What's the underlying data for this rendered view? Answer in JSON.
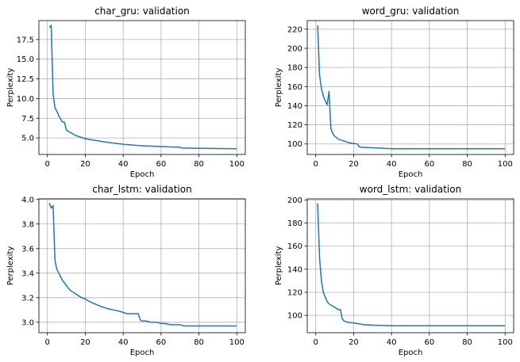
{
  "chart_data": [
    {
      "type": "line",
      "title": "char_gru: validation",
      "xlabel": "Epoch",
      "ylabel": "Perplexity",
      "xlim": [
        -4.5,
        104.5
      ],
      "ylim": [
        2.9,
        19.9
      ],
      "xticks": [
        0,
        20,
        40,
        60,
        80,
        100
      ],
      "yticks": [
        5.0,
        7.5,
        10.0,
        12.5,
        15.0,
        17.5
      ],
      "ytick_labels": [
        "5.0",
        "7.5",
        "10.0",
        "12.5",
        "15.0",
        "17.5"
      ],
      "grid": true,
      "line_color": "#1f77b4",
      "series": [
        {
          "x": [
            1,
            2,
            3,
            4,
            5,
            6,
            7,
            8,
            9,
            10,
            12,
            15,
            20,
            25,
            30,
            35,
            40,
            45,
            50,
            55,
            60,
            65,
            70,
            71,
            75,
            80,
            85,
            90,
            95,
            100
          ],
          "y": [
            19.0,
            19.3,
            10.6,
            8.8,
            8.4,
            7.8,
            7.4,
            7.0,
            7.0,
            6.0,
            5.7,
            5.3,
            4.9,
            4.7,
            4.5,
            4.35,
            4.2,
            4.1,
            4.0,
            3.95,
            3.9,
            3.85,
            3.82,
            3.72,
            3.7,
            3.68,
            3.67,
            3.65,
            3.64,
            3.63
          ]
        }
      ]
    },
    {
      "type": "line",
      "title": "word_gru: validation",
      "xlabel": "Epoch",
      "ylabel": "Perplexity",
      "xlim": [
        -4.5,
        104.5
      ],
      "ylim": [
        89,
        229
      ],
      "xticks": [
        0,
        20,
        40,
        60,
        80,
        100
      ],
      "yticks": [
        100,
        120,
        140,
        160,
        180,
        200,
        220
      ],
      "ytick_labels": [
        "100",
        "120",
        "140",
        "160",
        "180",
        "200",
        "220"
      ],
      "grid": true,
      "line_color": "#1f77b4",
      "series": [
        {
          "x": [
            1,
            2,
            3,
            4,
            5,
            6,
            7,
            8,
            9,
            10,
            12,
            15,
            18,
            22,
            23,
            25,
            30,
            35,
            40,
            50,
            60,
            70,
            80,
            90,
            100
          ],
          "y": [
            224,
            172,
            158,
            150,
            145,
            141,
            155,
            116,
            111,
            108,
            105,
            103,
            101,
            100,
            97,
            96.5,
            96,
            95.5,
            95,
            95,
            95,
            95,
            95,
            95,
            95
          ]
        }
      ]
    },
    {
      "type": "line",
      "title": "char_lstm: validation",
      "xlabel": "Epoch",
      "ylabel": "Perplexity",
      "xlim": [
        -4.5,
        104.5
      ],
      "ylim": [
        2.915,
        4.005
      ],
      "xticks": [
        0,
        20,
        40,
        60,
        80,
        100
      ],
      "yticks": [
        3.0,
        3.2,
        3.4,
        3.6,
        3.8,
        4.0
      ],
      "ytick_labels": [
        "3.0",
        "3.2",
        "3.4",
        "3.6",
        "3.8",
        "4.0"
      ],
      "grid": true,
      "line_color": "#1f77b4",
      "series": [
        {
          "x": [
            1,
            2,
            3,
            4,
            5,
            6,
            8,
            10,
            12,
            15,
            18,
            20,
            22,
            25,
            28,
            30,
            32,
            35,
            38,
            40,
            42,
            45,
            48,
            49,
            50,
            52,
            55,
            58,
            60,
            62,
            65,
            70,
            72,
            80,
            90,
            100
          ],
          "y": [
            3.97,
            3.93,
            3.95,
            3.5,
            3.43,
            3.4,
            3.34,
            3.3,
            3.26,
            3.23,
            3.2,
            3.19,
            3.17,
            3.15,
            3.13,
            3.12,
            3.11,
            3.1,
            3.09,
            3.08,
            3.07,
            3.07,
            3.07,
            3.02,
            3.01,
            3.01,
            3.0,
            3.0,
            2.99,
            2.99,
            2.98,
            2.98,
            2.97,
            2.97,
            2.97,
            2.97
          ]
        }
      ]
    },
    {
      "type": "line",
      "title": "word_lstm: validation",
      "xlabel": "Epoch",
      "ylabel": "Perplexity",
      "xlim": [
        -4.5,
        104.5
      ],
      "ylim": [
        85,
        201
      ],
      "xticks": [
        0,
        20,
        40,
        60,
        80,
        100
      ],
      "yticks": [
        100,
        120,
        140,
        160,
        180,
        200
      ],
      "ytick_labels": [
        "100",
        "120",
        "140",
        "160",
        "180",
        "200"
      ],
      "grid": true,
      "line_color": "#1f77b4",
      "series": [
        {
          "x": [
            1,
            2,
            3,
            4,
            5,
            6,
            7,
            8,
            10,
            12,
            13,
            14,
            15,
            17,
            20,
            25,
            30,
            40,
            50,
            60,
            70,
            80,
            90,
            100
          ],
          "y": [
            197,
            150,
            130,
            120,
            116,
            112,
            110,
            109,
            107,
            105,
            105,
            97,
            95,
            94,
            93.5,
            92,
            91.5,
            91,
            91,
            91,
            91,
            91,
            91,
            91
          ]
        }
      ]
    }
  ]
}
